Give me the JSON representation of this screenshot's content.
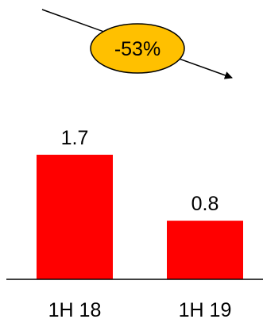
{
  "chart_data": {
    "type": "bar",
    "categories": [
      "1H 18",
      "1H 19"
    ],
    "values": [
      1.7,
      0.8
    ],
    "data_labels": [
      "1.7",
      "0.8"
    ],
    "annotation": "-53%",
    "title": "",
    "xlabel": "",
    "ylabel": "",
    "ylim": [
      0,
      1.7
    ],
    "grid": false,
    "bar_color": "#ff0000",
    "annotation_fill": "#ffc000",
    "annotation_stroke": "#000000"
  }
}
